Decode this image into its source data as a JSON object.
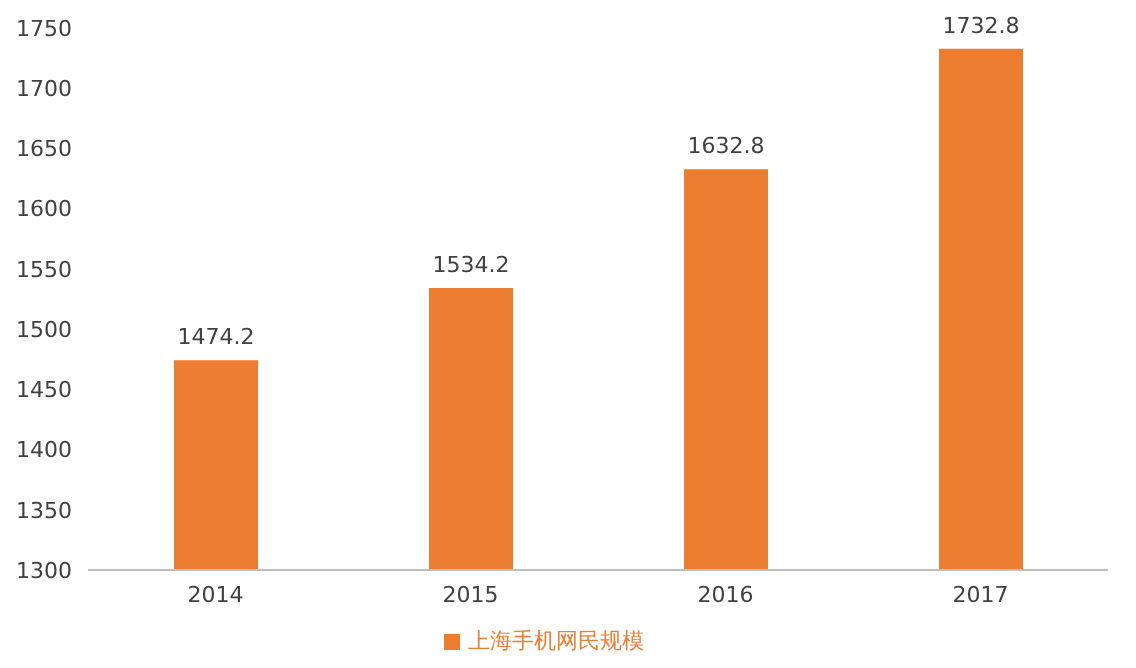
{
  "chart_data": {
    "type": "bar",
    "categories": [
      "2014",
      "2015",
      "2016",
      "2017"
    ],
    "series": [
      {
        "name": "上海手机网民规模",
        "color": "#ed7d31",
        "values": [
          1474.2,
          1534.2,
          1632.8,
          1732.8
        ]
      }
    ],
    "ylim": [
      1300,
      1750
    ],
    "yticks": [
      1300,
      1350,
      1400,
      1450,
      1500,
      1550,
      1600,
      1650,
      1700,
      1750
    ],
    "data_labels": true,
    "legend": "bottom",
    "grid": false
  }
}
